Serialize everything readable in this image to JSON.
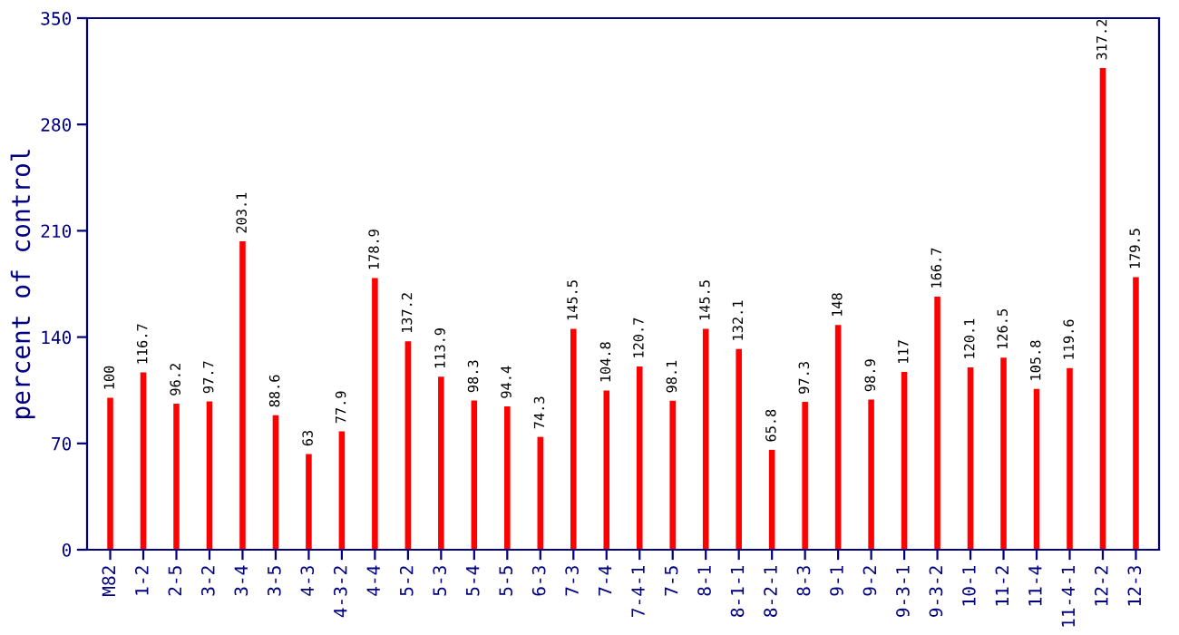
{
  "chart_data": {
    "type": "bar",
    "ylabel": "percent of control",
    "categories": [
      "M82",
      "1-2",
      "2-5",
      "3-2",
      "3-4",
      "3-5",
      "4-3",
      "4-3-2",
      "4-4",
      "5-2",
      "5-3",
      "5-4",
      "5-5",
      "6-3",
      "7-3",
      "7-4",
      "7-4-1",
      "7-5",
      "8-1",
      "8-1-1",
      "8-2-1",
      "8-3",
      "9-1",
      "9-2",
      "9-3-1",
      "9-3-2",
      "10-1",
      "11-2",
      "11-4",
      "11-4-1",
      "12-2",
      "12-3"
    ],
    "values": [
      100,
      116.7,
      96.2,
      97.7,
      203.1,
      88.6,
      63,
      77.9,
      178.9,
      137.2,
      113.9,
      98.3,
      94.4,
      74.3,
      145.5,
      104.8,
      120.7,
      98.1,
      145.5,
      132.1,
      65.8,
      97.3,
      148,
      98.9,
      117,
      166.7,
      120.1,
      126.5,
      105.8,
      119.6,
      317.2,
      179.5
    ],
    "color": "#ff0000",
    "ylim": [
      0,
      350
    ],
    "yticks": [
      0,
      70,
      140,
      210,
      280,
      350
    ],
    "grid": false,
    "data_labels": true
  }
}
